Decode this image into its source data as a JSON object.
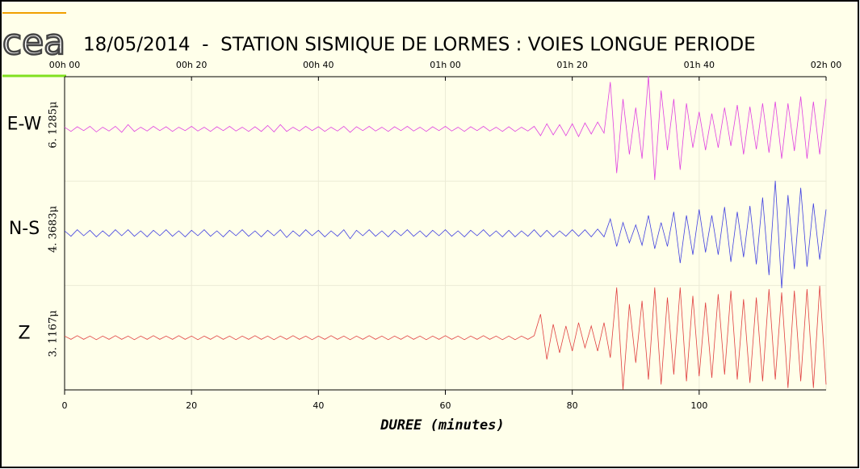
{
  "logo": "cea",
  "chart_data": {
    "type": "line",
    "title": "18/05/2014  -  STATION SISMIQUE DE LORMES : VOIES LONGUE PERIODE",
    "xlabel": "DUREE (minutes)",
    "xlim": [
      0,
      120
    ],
    "xticks": [
      0,
      20,
      40,
      60,
      80,
      100
    ],
    "x2ticks": [
      {
        "value": 0,
        "label": "00h 00"
      },
      {
        "value": 20,
        "label": "00h 20"
      },
      {
        "value": 40,
        "label": "00h 40"
      },
      {
        "value": 60,
        "label": "01h 00"
      },
      {
        "value": 80,
        "label": "01h 20"
      },
      {
        "value": 100,
        "label": "01h 40"
      },
      {
        "value": 120,
        "label": "02h 00"
      }
    ],
    "grid": true,
    "x": [
      0,
      1,
      2,
      3,
      4,
      5,
      6,
      7,
      8,
      9,
      10,
      11,
      12,
      13,
      14,
      15,
      16,
      17,
      18,
      19,
      20,
      21,
      22,
      23,
      24,
      25,
      26,
      27,
      28,
      29,
      30,
      31,
      32,
      33,
      34,
      35,
      36,
      37,
      38,
      39,
      40,
      41,
      42,
      43,
      44,
      45,
      46,
      47,
      48,
      49,
      50,
      51,
      52,
      53,
      54,
      55,
      56,
      57,
      58,
      59,
      60,
      61,
      62,
      63,
      64,
      65,
      66,
      67,
      68,
      69,
      70,
      71,
      72,
      73,
      74,
      75,
      76,
      77,
      78,
      79,
      80,
      81,
      82,
      83,
      84,
      85,
      86,
      87,
      88,
      89,
      90,
      91,
      92,
      93,
      94,
      95,
      96,
      97,
      98,
      99,
      100,
      101,
      102,
      103,
      104,
      105,
      106,
      107,
      108,
      109,
      110,
      111,
      112,
      113,
      114,
      115,
      116,
      117,
      118,
      119,
      120
    ],
    "series": [
      {
        "name": "E-W",
        "scale_label": "6. 1285μ",
        "color": "#e040e0",
        "ylim": [
          -6.1285,
          6.1285
        ],
        "values": [
          0.2,
          -0.3,
          0.25,
          -0.2,
          0.3,
          -0.35,
          0.2,
          -0.25,
          0.3,
          -0.4,
          0.5,
          -0.3,
          0.2,
          -0.25,
          0.3,
          -0.2,
          0.25,
          -0.3,
          0.2,
          -0.2,
          0.3,
          -0.25,
          0.2,
          -0.3,
          0.25,
          -0.2,
          0.3,
          -0.25,
          0.2,
          -0.3,
          0.25,
          -0.3,
          0.4,
          -0.35,
          0.5,
          -0.3,
          0.2,
          -0.25,
          0.3,
          -0.2,
          0.25,
          -0.3,
          0.2,
          -0.25,
          0.3,
          -0.4,
          0.25,
          -0.2,
          0.3,
          -0.25,
          0.2,
          -0.3,
          0.25,
          -0.2,
          0.3,
          -0.25,
          0.2,
          -0.3,
          0.25,
          -0.2,
          0.3,
          -0.25,
          0.2,
          -0.3,
          0.25,
          -0.2,
          0.3,
          -0.25,
          0.2,
          -0.3,
          0.25,
          -0.3,
          0.2,
          -0.25,
          0.3,
          -0.8,
          0.6,
          -0.7,
          0.5,
          -0.8,
          0.6,
          -0.9,
          0.7,
          -0.6,
          0.8,
          -0.5,
          5.5,
          -5.2,
          3.5,
          -3,
          2.5,
          -3.5,
          6.2,
          -6,
          4.5,
          -2.5,
          3.5,
          -4.8,
          3,
          -2.2,
          2,
          -2.5,
          1.8,
          -2.2,
          2.5,
          -2,
          2.8,
          -3,
          2.6,
          -2.4,
          3,
          -2.8,
          3.2,
          -3.5,
          3,
          -2.6,
          3.8,
          -3.5,
          3.2,
          -3,
          3.5
        ]
      },
      {
        "name": "N-S",
        "scale_label": "4. 3683μ",
        "color": "#4040e0",
        "ylim": [
          -4.3683,
          4.3683
        ],
        "values": [
          0.2,
          -0.25,
          0.3,
          -0.2,
          0.25,
          -0.3,
          0.2,
          -0.25,
          0.3,
          -0.2,
          0.3,
          -0.25,
          0.2,
          -0.3,
          0.25,
          -0.2,
          0.3,
          -0.25,
          0.2,
          -0.3,
          0.25,
          -0.2,
          0.3,
          -0.25,
          0.2,
          -0.3,
          0.25,
          -0.2,
          0.3,
          -0.25,
          0.2,
          -0.3,
          0.25,
          -0.2,
          0.3,
          -0.35,
          0.2,
          -0.25,
          0.3,
          -0.2,
          0.25,
          -0.3,
          0.2,
          -0.25,
          0.3,
          -0.45,
          0.25,
          -0.2,
          0.3,
          -0.25,
          0.2,
          -0.3,
          0.25,
          -0.2,
          0.3,
          -0.25,
          0.2,
          -0.3,
          0.25,
          -0.2,
          0.3,
          -0.25,
          0.2,
          -0.3,
          0.25,
          -0.2,
          0.3,
          -0.25,
          0.2,
          -0.3,
          0.25,
          -0.3,
          0.2,
          -0.25,
          0.3,
          -0.3,
          0.25,
          -0.3,
          0.2,
          -0.25,
          0.3,
          -0.25,
          0.3,
          -0.3,
          0.35,
          -0.3,
          1.2,
          -1.1,
          0.9,
          -0.8,
          0.7,
          -1,
          1.5,
          -1.3,
          0.9,
          -1.1,
          1.8,
          -2.5,
          1.5,
          -1.8,
          2,
          -1.6,
          1.5,
          -1.8,
          2.2,
          -2.4,
          1.8,
          -2,
          2.3,
          -2.6,
          3,
          -3.5,
          4.4,
          -4.6,
          3.2,
          -3,
          3.8,
          -2.8,
          2.5,
          -2.2,
          2
        ]
      },
      {
        "name": "Z",
        "scale_label": "3. 1167μ",
        "color": "#e04040",
        "ylim": [
          -3.1167,
          3.1167
        ],
        "values": [
          0.1,
          -0.1,
          0.12,
          -0.1,
          0.1,
          -0.12,
          0.1,
          -0.1,
          0.12,
          -0.1,
          0.1,
          -0.12,
          0.1,
          -0.1,
          0.12,
          -0.1,
          0.1,
          -0.1,
          0.12,
          -0.1,
          0.1,
          -0.12,
          0.1,
          -0.1,
          0.12,
          -0.1,
          0.1,
          -0.12,
          0.1,
          -0.1,
          0.12,
          -0.1,
          0.1,
          -0.12,
          0.1,
          -0.1,
          0.12,
          -0.1,
          0.1,
          -0.12,
          0.1,
          -0.1,
          0.12,
          -0.1,
          0.1,
          -0.12,
          0.1,
          -0.1,
          0.12,
          -0.1,
          0.1,
          -0.12,
          0.1,
          -0.1,
          0.12,
          -0.1,
          0.1,
          -0.12,
          0.1,
          -0.1,
          0.12,
          -0.1,
          0.1,
          -0.12,
          0.1,
          -0.1,
          0.12,
          -0.1,
          0.1,
          -0.12,
          0.1,
          -0.12,
          0.1,
          -0.1,
          0.12,
          1.4,
          -1.3,
          0.8,
          -0.9,
          0.7,
          -0.8,
          0.9,
          -0.6,
          0.7,
          -0.8,
          0.9,
          -1.2,
          3,
          -3.1,
          2,
          -1.5,
          2.2,
          -2.5,
          3,
          -2.8,
          2.4,
          -2.2,
          3,
          -2.6,
          2.5,
          -2.3,
          2.1,
          -2.4,
          2.6,
          -2.2,
          2.8,
          -2.5,
          2.3,
          -2.7,
          2.4,
          -2.6,
          2.9,
          -2.5,
          2.7,
          -3,
          2.8,
          -2.6,
          2.9,
          -3,
          3.1,
          -2.8
        ]
      }
    ]
  }
}
